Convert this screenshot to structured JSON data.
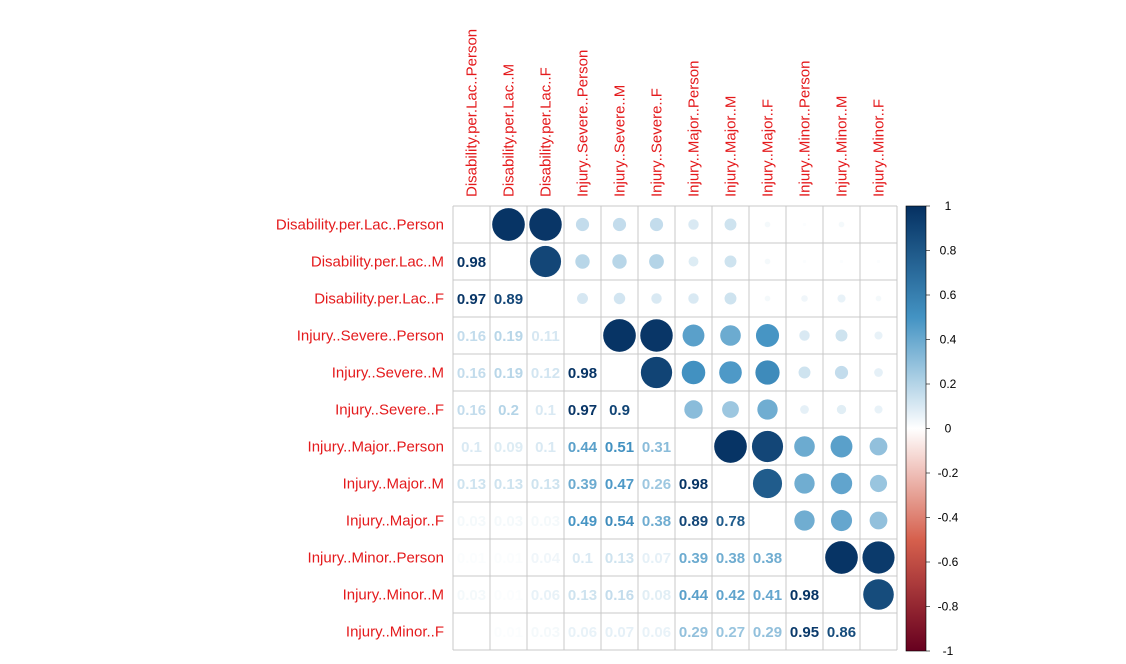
{
  "chart_data": {
    "type": "heatmap",
    "variables": [
      "Disability.per.Lac..Person",
      "Disability.per.Lac..M",
      "Disability.per.Lac..F",
      "Injury..Severe..Person",
      "Injury..Severe..M",
      "Injury..Severe..F",
      "Injury..Major..Person",
      "Injury..Major..M",
      "Injury..Major..F",
      "Injury..Minor..Person",
      "Injury..Minor..M",
      "Injury..Minor..F"
    ],
    "matrix": [
      [
        1.0,
        0.98,
        0.97,
        0.16,
        0.16,
        0.16,
        0.1,
        0.13,
        0.03,
        0.01,
        0.03,
        0.0
      ],
      [
        0.98,
        1.0,
        0.89,
        0.19,
        0.19,
        0.2,
        0.09,
        0.13,
        0.03,
        0.01,
        0.01,
        0.01
      ],
      [
        0.97,
        0.89,
        1.0,
        0.11,
        0.12,
        0.1,
        0.1,
        0.13,
        0.03,
        0.04,
        0.06,
        0.03
      ],
      [
        0.16,
        0.19,
        0.11,
        1.0,
        0.98,
        0.97,
        0.44,
        0.39,
        0.49,
        0.1,
        0.13,
        0.06
      ],
      [
        0.16,
        0.19,
        0.12,
        0.98,
        1.0,
        0.9,
        0.51,
        0.47,
        0.54,
        0.13,
        0.16,
        0.07
      ],
      [
        0.16,
        0.2,
        0.1,
        0.97,
        0.9,
        1.0,
        0.31,
        0.26,
        0.38,
        0.07,
        0.08,
        0.06
      ],
      [
        0.1,
        0.09,
        0.1,
        0.44,
        0.51,
        0.31,
        1.0,
        0.98,
        0.89,
        0.39,
        0.44,
        0.29
      ],
      [
        0.13,
        0.13,
        0.13,
        0.39,
        0.47,
        0.26,
        0.98,
        1.0,
        0.78,
        0.38,
        0.42,
        0.27
      ],
      [
        0.03,
        0.03,
        0.03,
        0.49,
        0.54,
        0.38,
        0.89,
        0.78,
        1.0,
        0.38,
        0.41,
        0.29
      ],
      [
        0.01,
        0.01,
        0.04,
        0.1,
        0.13,
        0.07,
        0.39,
        0.38,
        0.38,
        1.0,
        0.98,
        0.95
      ],
      [
        0.03,
        0.01,
        0.06,
        0.13,
        0.16,
        0.08,
        0.44,
        0.42,
        0.41,
        0.98,
        1.0,
        0.86
      ],
      [
        0.0,
        0.01,
        0.03,
        0.06,
        0.07,
        0.06,
        0.29,
        0.27,
        0.29,
        0.95,
        0.86,
        1.0
      ]
    ],
    "lower_triangle": "numbers",
    "upper_triangle": "circles",
    "color_range": [
      -1,
      1
    ],
    "colorbar_ticks": [
      "1",
      "0.8",
      "0.6",
      "0.4",
      "0.2",
      "0",
      "-0.2",
      "-0.4",
      "-0.6",
      "-0.8",
      "-1"
    ],
    "colors": {
      "negative_end": "#67001F",
      "negative_mid": "#D6604D",
      "neutral": "#FFFFFF",
      "positive_mid": "#4393C3",
      "positive_end": "#053061",
      "label_color": "#E41A1C",
      "grid_color": "#C8C8C8"
    },
    "legend_position": "right"
  }
}
